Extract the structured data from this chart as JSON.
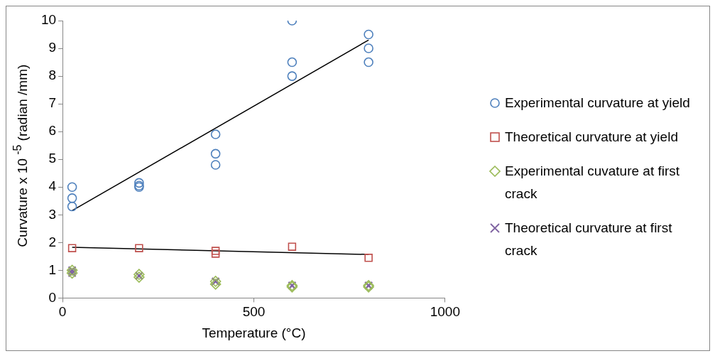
{
  "chart_data": {
    "type": "scatter",
    "xlabel": "Temperature (°C)",
    "ylabel": "Curvature x 10 $^{-5}$ (radian /mm)",
    "xlim": [
      0,
      1000
    ],
    "xticks": [
      0,
      500,
      1000
    ],
    "ylim": [
      0,
      10
    ],
    "yticks": [
      0,
      1,
      2,
      3,
      4,
      5,
      6,
      7,
      8,
      9,
      10
    ],
    "grid": false,
    "legend": "right",
    "series": [
      {
        "name": "Experimental curvature at yield",
        "color": "#4f81bd",
        "marker": "circle",
        "x": [
          25,
          25,
          25,
          200,
          200,
          200,
          400,
          400,
          400,
          600,
          600,
          600,
          800,
          800,
          800
        ],
        "values": [
          4,
          3.6,
          3.3,
          4.15,
          4.05,
          4.0,
          5.9,
          5.2,
          4.8,
          10,
          8.5,
          8.0,
          9.5,
          9.0,
          8.5
        ]
      },
      {
        "name": "Theoretical curvature at yield",
        "color": "#c0504d",
        "marker": "square",
        "x": [
          25,
          200,
          400,
          400,
          600,
          800
        ],
        "values": [
          1.8,
          1.8,
          1.7,
          1.6,
          1.85,
          1.45
        ]
      },
      {
        "name": "Experimental cuvature at first crack",
        "color": "#9bbb59",
        "marker": "diamond",
        "x": [
          25,
          25,
          200,
          200,
          400,
          400,
          600,
          600,
          800,
          800
        ],
        "values": [
          1.0,
          0.9,
          0.85,
          0.75,
          0.6,
          0.5,
          0.45,
          0.4,
          0.45,
          0.4
        ]
      },
      {
        "name": "Theoretical curvature at first crack",
        "color": "#8064a2",
        "marker": "cross",
        "x": [
          25,
          25,
          200,
          400,
          600,
          800
        ],
        "values": [
          1.0,
          0.9,
          0.8,
          0.6,
          0.45,
          0.45
        ]
      },
      {
        "type": "line",
        "color": "#000000",
        "marker": "none",
        "x": [
          25,
          800
        ],
        "values": [
          3.15,
          9.3
        ]
      },
      {
        "type": "line",
        "color": "#000000",
        "marker": "none",
        "x": [
          25,
          800
        ],
        "values": [
          1.83,
          1.57
        ]
      }
    ]
  }
}
